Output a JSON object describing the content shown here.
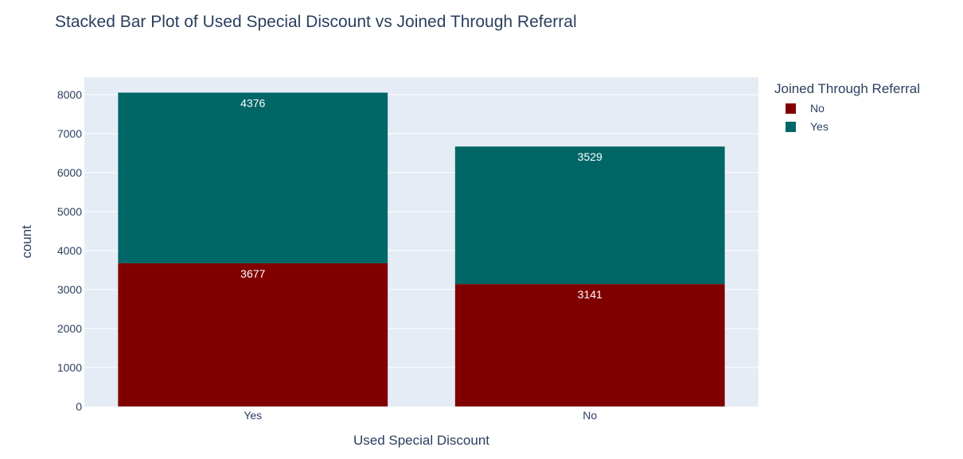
{
  "chart_data": {
    "type": "bar",
    "barmode": "stack",
    "title": "Stacked Bar Plot of Used Special Discount vs Joined Through Referral",
    "xlabel": "Used Special Discount",
    "ylabel": "count",
    "categories": [
      "Yes",
      "No"
    ],
    "ylim": [
      0,
      8450
    ],
    "yticks": [
      0,
      1000,
      2000,
      3000,
      4000,
      5000,
      6000,
      7000,
      8000
    ],
    "grid": true,
    "legend_title": "Joined Through Referral",
    "legend_position": "right",
    "series": [
      {
        "name": "No",
        "values": [
          3677,
          3141
        ],
        "color": "#800000"
      },
      {
        "name": "Yes",
        "values": [
          4376,
          3529
        ],
        "color": "#006666"
      }
    ],
    "plot_background": "#e5ecf6"
  }
}
